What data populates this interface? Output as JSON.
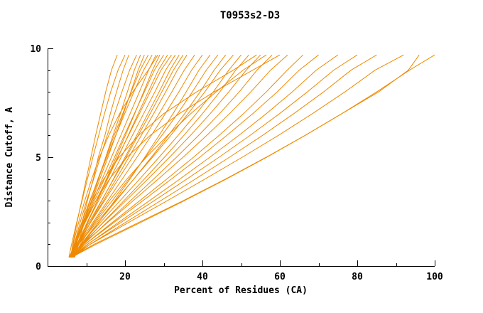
{
  "window": {
    "background": "#ffffff"
  },
  "chart_data": {
    "type": "line",
    "title": "T0953s2-D3",
    "xlabel": "Percent of Residues (CA)",
    "ylabel": "Distance Cutoff, A",
    "xlim": [
      0,
      100
    ],
    "ylim": [
      0,
      10
    ],
    "x_ticks": [
      20,
      40,
      60,
      80,
      100
    ],
    "x_minor_ticks": [
      10,
      30,
      50,
      70,
      90
    ],
    "y_ticks": [
      0,
      5,
      10
    ],
    "y_minor_ticks": [
      1,
      2,
      3,
      4,
      6,
      7,
      8,
      9
    ],
    "grid": false,
    "legend": "none",
    "line_color": "#EF8A00",
    "axis_color": "#000000",
    "y_values": [
      0.4,
      1,
      2,
      3,
      4,
      5,
      6,
      7,
      8,
      9,
      9.7
    ],
    "series": [
      {
        "x": [
          6.0,
          6.5,
          7.6,
          8.8,
          10.0,
          11.2,
          12.4,
          13.7,
          15.0,
          16.5,
          18.0
        ]
      },
      {
        "x": [
          5.5,
          6.2,
          7.5,
          8.9,
          10.3,
          11.7,
          13.2,
          14.7,
          16.3,
          18.2,
          20.0
        ]
      },
      {
        "x": [
          6.5,
          7.3,
          8.9,
          10.3,
          11.8,
          13.1,
          14.8,
          16.2,
          17.8,
          19.5,
          21.0
        ]
      },
      {
        "x": [
          6.0,
          6.9,
          8.4,
          10.1,
          11.9,
          13.6,
          15.4,
          17.3,
          19.2,
          21.2,
          23.0
        ]
      },
      {
        "x": [
          7.0,
          7.8,
          9.5,
          11.3,
          13.2,
          15.0,
          16.9,
          18.8,
          20.6,
          22.4,
          24.0
        ]
      },
      {
        "x": [
          6.0,
          7.2,
          9.3,
          11.5,
          13.5,
          15.6,
          17.6,
          19.6,
          21.5,
          23.4,
          25.0
        ]
      },
      {
        "x": [
          6.5,
          7.4,
          9.2,
          11.0,
          13.0,
          15.1,
          17.2,
          19.4,
          21.6,
          23.9,
          26.0
        ]
      },
      {
        "x": [
          5.8,
          6.8,
          8.8,
          10.9,
          13.1,
          15.3,
          17.6,
          19.9,
          22.3,
          24.8,
          27.0
        ]
      },
      {
        "x": [
          6.2,
          7.3,
          9.5,
          11.8,
          14.1,
          16.5,
          18.9,
          21.3,
          23.7,
          26.1,
          28.0
        ]
      },
      {
        "x": [
          6.8,
          8.0,
          10.4,
          12.8,
          15.2,
          17.7,
          20.1,
          22.5,
          24.8,
          27.1,
          29.0
        ]
      },
      {
        "x": [
          5.9,
          6.6,
          8.0,
          9.6,
          11.4,
          13.4,
          15.8,
          18.6,
          22.0,
          26.0,
          28.5
        ]
      },
      {
        "x": [
          6.0,
          7.2,
          9.6,
          12.1,
          14.7,
          17.3,
          19.8,
          22.4,
          25.0,
          27.6,
          30.0
        ]
      },
      {
        "x": [
          6.4,
          7.7,
          10.2,
          12.9,
          15.5,
          18.2,
          20.8,
          23.4,
          26.0,
          28.6,
          31.0
        ]
      },
      {
        "x": [
          5.6,
          7.0,
          9.7,
          12.5,
          15.3,
          18.1,
          20.9,
          23.7,
          26.5,
          29.3,
          32.0
        ]
      },
      {
        "x": [
          6.1,
          7.5,
          10.3,
          13.2,
          16.1,
          19.0,
          21.9,
          24.8,
          27.7,
          30.5,
          33.0
        ]
      },
      {
        "x": [
          6.6,
          8.1,
          11.0,
          14.0,
          17.0,
          20.0,
          23.0,
          25.9,
          28.8,
          31.6,
          34.0
        ]
      },
      {
        "x": [
          6.0,
          7.6,
          10.7,
          13.9,
          17.1,
          20.3,
          23.4,
          26.5,
          29.5,
          32.5,
          35.0
        ]
      },
      {
        "x": [
          6.3,
          7.9,
          11.1,
          14.4,
          17.7,
          21.0,
          24.2,
          27.4,
          30.5,
          33.5,
          36.0
        ]
      },
      {
        "x": [
          5.9,
          7.6,
          11.1,
          14.7,
          18.3,
          21.9,
          25.4,
          28.8,
          32.1,
          35.3,
          38.0
        ]
      },
      {
        "x": [
          6.2,
          8.0,
          11.7,
          15.5,
          19.3,
          23.1,
          26.8,
          30.4,
          33.9,
          37.2,
          40.0
        ]
      },
      {
        "x": [
          6.6,
          9.0,
          13.2,
          17.3,
          21.3,
          25.1,
          28.8,
          32.4,
          35.8,
          39.1,
          42.0
        ]
      },
      {
        "x": [
          6.0,
          8.1,
          12.3,
          16.7,
          21.0,
          25.3,
          29.5,
          33.6,
          37.4,
          41.0,
          44.0
        ]
      },
      {
        "x": [
          6.4,
          8.6,
          13.1,
          17.7,
          22.3,
          26.8,
          31.2,
          35.4,
          39.4,
          43.0,
          46.0
        ]
      },
      {
        "x": [
          5.7,
          8.0,
          12.7,
          17.5,
          22.3,
          27.1,
          31.8,
          36.3,
          40.6,
          44.6,
          48.0
        ]
      },
      {
        "x": [
          6.1,
          8.6,
          13.6,
          18.7,
          23.8,
          28.8,
          33.7,
          38.4,
          42.8,
          46.8,
          50.0
        ]
      },
      {
        "x": [
          6.5,
          9.1,
          14.3,
          19.7,
          25.0,
          30.2,
          35.2,
          40.0,
          44.5,
          48.6,
          52.0
        ]
      },
      {
        "x": [
          6.1,
          7.0,
          9.0,
          11.5,
          14.5,
          18.5,
          23.5,
          30.0,
          38.5,
          48.0,
          54.0
        ]
      },
      {
        "x": [
          6.0,
          8.8,
          14.4,
          20.2,
          25.9,
          31.5,
          36.9,
          42.0,
          46.8,
          51.3,
          55.0
        ]
      },
      {
        "x": [
          6.7,
          8.5,
          12.0,
          16.0,
          20.5,
          25.5,
          31.0,
          37.0,
          43.5,
          50.5,
          56.5
        ]
      },
      {
        "x": [
          6.3,
          9.3,
          15.3,
          21.4,
          27.4,
          33.3,
          39.0,
          44.4,
          49.5,
          54.1,
          58.0
        ]
      },
      {
        "x": [
          6.3,
          7.2,
          9.5,
          12.5,
          16.0,
          20.5,
          26.5,
          34.0,
          43.0,
          53.0,
          60.0
        ]
      },
      {
        "x": [
          5.8,
          9.0,
          15.5,
          22.1,
          28.6,
          35.0,
          41.1,
          47.0,
          52.5,
          57.6,
          62.0
        ]
      },
      {
        "x": [
          6.2,
          9.7,
          16.7,
          23.8,
          30.8,
          37.7,
          44.3,
          50.6,
          56.5,
          61.9,
          66.0
        ]
      },
      {
        "x": [
          6.0,
          9.7,
          17.1,
          24.6,
          32.0,
          39.3,
          46.3,
          53.0,
          59.3,
          65.0,
          70.0
        ]
      },
      {
        "x": [
          6.4,
          10.4,
          18.3,
          26.3,
          34.2,
          41.9,
          49.4,
          56.5,
          63.2,
          69.4,
          75.0
        ]
      },
      {
        "x": [
          6.0,
          10.3,
          18.9,
          27.5,
          36.0,
          44.3,
          52.3,
          59.9,
          67.1,
          73.9,
          80.0
        ]
      },
      {
        "x": [
          6.5,
          11.0,
          20.1,
          29.2,
          38.2,
          47.0,
          55.5,
          63.6,
          71.3,
          78.4,
          85.0
        ]
      },
      {
        "x": [
          6.0,
          11.0,
          20.9,
          30.9,
          40.7,
          50.3,
          59.6,
          68.4,
          76.8,
          84.6,
          92.0
        ]
      },
      {
        "x": [
          6.0,
          12.0,
          23.5,
          35.0,
          46.0,
          56.5,
          66.5,
          76.0,
          85.5,
          93.2,
          96.0
        ]
      },
      {
        "x": [
          6.2,
          12.5,
          24.0,
          35.3,
          46.2,
          56.6,
          66.5,
          76.0,
          85.0,
          93.5,
          100.0
        ]
      }
    ]
  }
}
